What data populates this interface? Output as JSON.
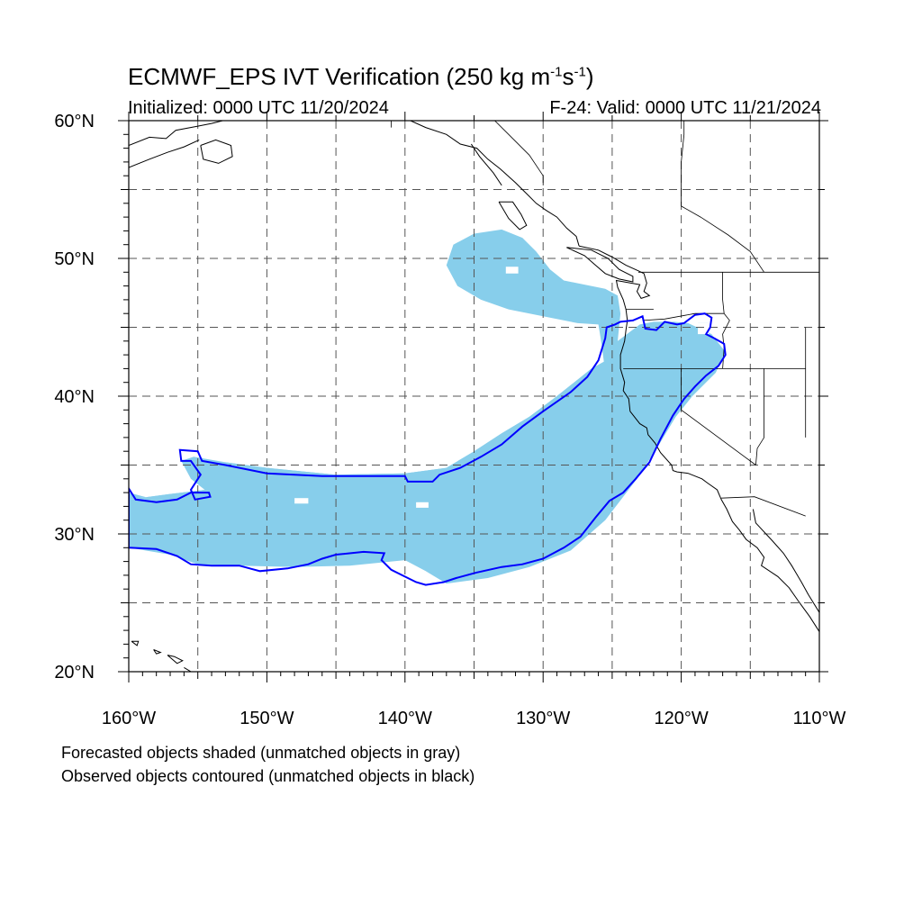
{
  "title": {
    "prefix": "ECMWF_EPS IVT Verification (250 kg m",
    "exp1": "-1",
    "mid": "s",
    "exp2": "-1",
    "suffix": ")"
  },
  "subtitle_left": "Initialized: 0000 UTC 11/20/2024",
  "subtitle_right": "F-24: Valid: 0000 UTC 11/21/2024",
  "footnotes": [
    "Forecasted objects shaded (unmatched objects in gray)",
    "Observed objects contoured (unmatched objects in black)"
  ],
  "map": {
    "extent": {
      "lon": [
        -160,
        -110
      ],
      "lat": [
        20,
        60
      ]
    },
    "lon_labels": [
      "160°W",
      "150°W",
      "140°W",
      "130°W",
      "120°W",
      "110°W"
    ],
    "lat_labels": [
      "20°N",
      "30°N",
      "40°N",
      "50°N",
      "60°N"
    ],
    "grid_lons": [
      -155,
      -150,
      -145,
      -140,
      -135,
      -130,
      -125,
      -120,
      -115
    ],
    "grid_lats": [
      25,
      30,
      35,
      40,
      45,
      50,
      55
    ],
    "colors": {
      "forecast_fill": "#87CEEB",
      "observed_contour": "#0000FF",
      "coastline": "#000000",
      "grid": "#555555"
    },
    "forecast_object": [
      [
        -160,
        33
      ],
      [
        -157,
        32.2
      ],
      [
        -153,
        32
      ],
      [
        -150,
        32.5
      ],
      [
        -146,
        33.2
      ],
      [
        -140,
        33.8
      ],
      [
        -135,
        34.5
      ],
      [
        -132,
        35.8
      ],
      [
        -129,
        37.8
      ],
      [
        -126,
        40
      ],
      [
        -124.8,
        42
      ],
      [
        -124.6,
        44
      ],
      [
        -124.4,
        46
      ],
      [
        -124.6,
        47.3
      ],
      [
        -125.5,
        47.8
      ],
      [
        -127,
        48.1
      ],
      [
        -128.5,
        48.4
      ],
      [
        -129.5,
        49.2
      ],
      [
        -130.5,
        50.5
      ],
      [
        -131.5,
        51.5
      ],
      [
        -133,
        52.1
      ],
      [
        -135,
        51.8
      ],
      [
        -136.5,
        51
      ],
      [
        -137,
        49.5
      ],
      [
        -136.2,
        48
      ],
      [
        -134.5,
        47
      ],
      [
        -132.5,
        46.3
      ],
      [
        -130,
        45.8
      ],
      [
        -127.5,
        45.3
      ],
      [
        -126,
        45.2
      ],
      [
        -125.8,
        44
      ],
      [
        -125.6,
        42.5
      ],
      [
        -126.5,
        42
      ],
      [
        -129,
        40
      ],
      [
        -131,
        38.5
      ],
      [
        -133,
        37.3
      ],
      [
        -135,
        36
      ],
      [
        -137,
        34.8
      ],
      [
        -140,
        34.4
      ],
      [
        -145,
        34.3
      ],
      [
        -150,
        34.8
      ],
      [
        -153,
        35.2
      ],
      [
        -155.3,
        35.6
      ],
      [
        -156.2,
        35.3
      ],
      [
        -155.5,
        34
      ],
      [
        -154.5,
        33.2
      ],
      [
        -157,
        32.9
      ],
      [
        -160,
        32.5
      ]
    ],
    "forecast_object_lower": [
      [
        -160,
        32.5
      ],
      [
        -160,
        29
      ],
      [
        -157,
        28.5
      ],
      [
        -155,
        27.8
      ],
      [
        -152,
        27.7
      ],
      [
        -148,
        27.6
      ],
      [
        -144,
        27.7
      ],
      [
        -140,
        28.1
      ],
      [
        -138.5,
        27.3
      ],
      [
        -137,
        26.4
      ],
      [
        -134,
        26.8
      ],
      [
        -131,
        27.6
      ],
      [
        -128,
        28.8
      ],
      [
        -125.5,
        31
      ],
      [
        -123.2,
        34
      ],
      [
        -121.6,
        36.5
      ],
      [
        -120.4,
        38.5
      ],
      [
        -119.2,
        40
      ],
      [
        -117.5,
        41.7
      ],
      [
        -116.8,
        43.2
      ],
      [
        -117.8,
        44.5
      ],
      [
        -119.5,
        45.3
      ],
      [
        -120.5,
        45.4
      ],
      [
        -122,
        45.4
      ],
      [
        -123,
        45.2
      ],
      [
        -124.6,
        44
      ],
      [
        -125.6,
        42.5
      ],
      [
        -126.5,
        42
      ],
      [
        -129,
        40
      ],
      [
        -131,
        38.5
      ],
      [
        -133,
        37.3
      ],
      [
        -135,
        36
      ],
      [
        -137,
        34.8
      ],
      [
        -140,
        34.4
      ],
      [
        -145,
        34.3
      ],
      [
        -150,
        34.8
      ],
      [
        -153,
        35.2
      ],
      [
        -154.5,
        33.2
      ],
      [
        -157,
        32.9
      ],
      [
        -160,
        32.5
      ]
    ],
    "forecast_holes": [
      [
        [
          -132.7,
          49.4
        ],
        [
          -131.8,
          49.4
        ],
        [
          -131.8,
          48.9
        ],
        [
          -132.7,
          48.9
        ]
      ],
      [
        [
          -139.2,
          32.3
        ],
        [
          -138.3,
          32.3
        ],
        [
          -138.3,
          31.9
        ],
        [
          -139.2,
          31.9
        ]
      ],
      [
        [
          -148,
          32.6
        ],
        [
          -147,
          32.6
        ],
        [
          -147,
          32.2
        ],
        [
          -148,
          32.2
        ]
      ],
      [
        [
          -118.8,
          45.3
        ],
        [
          -118,
          45.3
        ],
        [
          -118,
          44.5
        ],
        [
          -118.8,
          44.5
        ]
      ]
    ],
    "observed_object": [
      [
        -160,
        33.3
      ],
      [
        -159.5,
        32.5
      ],
      [
        -158,
        32.3
      ],
      [
        -156.5,
        32.5
      ],
      [
        -155.5,
        33
      ],
      [
        -154.2,
        33
      ],
      [
        -154.1,
        32.7
      ],
      [
        -155.2,
        32.5
      ],
      [
        -155.5,
        33.2
      ],
      [
        -154.8,
        34.3
      ],
      [
        -155.5,
        35.3
      ],
      [
        -156.2,
        35.3
      ],
      [
        -156.3,
        36.1
      ],
      [
        -155,
        36
      ],
      [
        -154.7,
        35.3
      ],
      [
        -153,
        35
      ],
      [
        -150,
        34.4
      ],
      [
        -146,
        34.2
      ],
      [
        -140,
        34.2
      ],
      [
        -139.8,
        33.8
      ],
      [
        -138,
        33.8
      ],
      [
        -137.5,
        34.3
      ],
      [
        -136,
        34.8
      ],
      [
        -134.5,
        35.6
      ],
      [
        -133,
        36.5
      ],
      [
        -131.5,
        37.8
      ],
      [
        -130,
        38.9
      ],
      [
        -128,
        40.3
      ],
      [
        -126.8,
        41.4
      ],
      [
        -126,
        42.6
      ],
      [
        -125.5,
        44.2
      ],
      [
        -125.4,
        45
      ],
      [
        -124.8,
        45.2
      ],
      [
        -124.4,
        45.4
      ],
      [
        -123.5,
        45.5
      ],
      [
        -122.8,
        45.8
      ],
      [
        -122.6,
        44.9
      ],
      [
        -121.8,
        44.8
      ],
      [
        -121.2,
        45.4
      ],
      [
        -120.3,
        45.2
      ],
      [
        -119.8,
        45.3
      ],
      [
        -119,
        45.9
      ],
      [
        -118.3,
        46
      ],
      [
        -117.8,
        45.7
      ],
      [
        -117.9,
        45
      ],
      [
        -118.2,
        44.5
      ],
      [
        -117.6,
        44.2
      ],
      [
        -116.9,
        43.8
      ],
      [
        -116.8,
        43
      ],
      [
        -117.3,
        42.2
      ],
      [
        -118.2,
        41.5
      ],
      [
        -119,
        40.7
      ],
      [
        -119.8,
        39.8
      ],
      [
        -120.6,
        38.6
      ],
      [
        -121.5,
        36.9
      ],
      [
        -122.3,
        35.2
      ],
      [
        -123.3,
        34
      ],
      [
        -124.2,
        33
      ],
      [
        -125.2,
        32.4
      ],
      [
        -126.2,
        31.2
      ],
      [
        -127.3,
        29.8
      ],
      [
        -128.5,
        29
      ],
      [
        -130,
        28.2
      ],
      [
        -131.5,
        27.8
      ],
      [
        -133,
        27.6
      ],
      [
        -134.8,
        27.2
      ],
      [
        -136.3,
        26.8
      ],
      [
        -137.2,
        26.5
      ],
      [
        -138.5,
        26.3
      ],
      [
        -139.2,
        26.5
      ],
      [
        -140.2,
        27
      ],
      [
        -141,
        27.4
      ],
      [
        -141.7,
        28.1
      ],
      [
        -141.5,
        28.6
      ],
      [
        -143,
        28.7
      ],
      [
        -145,
        28.5
      ],
      [
        -146,
        28.2
      ],
      [
        -147,
        27.8
      ],
      [
        -148.5,
        27.5
      ],
      [
        -150.5,
        27.3
      ],
      [
        -152,
        27.7
      ],
      [
        -154,
        27.7
      ],
      [
        -155.5,
        27.8
      ],
      [
        -156.5,
        28.4
      ],
      [
        -158,
        28.9
      ],
      [
        -160,
        29
      ]
    ],
    "coastlines": [
      [
        [
          -160,
          58.2
        ],
        [
          -158.5,
          58.8
        ],
        [
          -157.3,
          58.7
        ],
        [
          -156.6,
          59.3
        ],
        [
          -155,
          59.6
        ],
        [
          -154,
          59.8
        ],
        [
          -153.2,
          60
        ]
      ],
      [
        [
          -160,
          56.6
        ],
        [
          -158.5,
          57.2
        ],
        [
          -157.2,
          57.7
        ],
        [
          -156,
          58.1
        ],
        [
          -154.9,
          58.6
        ]
      ],
      [
        [
          -154.8,
          58.2
        ],
        [
          -153.7,
          58.6
        ],
        [
          -152.6,
          58.2
        ],
        [
          -152.5,
          57.4
        ],
        [
          -153.5,
          56.9
        ],
        [
          -154.6,
          57.2
        ],
        [
          -154.8,
          58.2
        ]
      ],
      [
        [
          -139.6,
          60
        ],
        [
          -138.5,
          59.5
        ],
        [
          -137,
          59
        ],
        [
          -136,
          58.3
        ],
        [
          -134.8,
          58
        ],
        [
          -134,
          57.2
        ],
        [
          -133.1,
          56.5
        ],
        [
          -132,
          55.5
        ],
        [
          -131,
          54.5
        ],
        [
          -130.5,
          54
        ],
        [
          -129.8,
          53.5
        ],
        [
          -129,
          53
        ],
        [
          -128.3,
          52.2
        ],
        [
          -127.6,
          51.6
        ],
        [
          -127.4,
          50.9
        ]
      ],
      [
        [
          -135.2,
          58.3
        ],
        [
          -134.6,
          57.4
        ],
        [
          -133.6,
          56.2
        ],
        [
          -133,
          55.3
        ]
      ],
      [
        [
          -133.2,
          54.1
        ],
        [
          -132.2,
          54.1
        ],
        [
          -131.6,
          53.2
        ],
        [
          -131.2,
          52.4
        ],
        [
          -131.7,
          52.1
        ],
        [
          -132.5,
          52.9
        ],
        [
          -133.2,
          54.1
        ]
      ],
      [
        [
          -128.3,
          50.8
        ],
        [
          -127,
          50.2
        ],
        [
          -126.2,
          49.5
        ],
        [
          -125.5,
          48.9
        ],
        [
          -124.5,
          48.5
        ],
        [
          -123.5,
          48.3
        ],
        [
          -123.5,
          48.7
        ],
        [
          -124.5,
          49.2
        ],
        [
          -125.3,
          50
        ],
        [
          -126.5,
          50.6
        ],
        [
          -128.3,
          50.8
        ]
      ],
      [
        [
          -127.4,
          50.9
        ],
        [
          -126,
          50.6
        ],
        [
          -125,
          50.1
        ],
        [
          -124,
          49.5
        ],
        [
          -123.1,
          49.1
        ],
        [
          -122.7,
          48.9
        ],
        [
          -122.5,
          48.2
        ],
        [
          -122.7,
          47.6
        ],
        [
          -122.3,
          47.3
        ],
        [
          -122.9,
          47.1
        ],
        [
          -123.2,
          47.6
        ],
        [
          -123,
          48.1
        ],
        [
          -124.7,
          48.4
        ],
        [
          -124.6,
          47.9
        ],
        [
          -124.2,
          47
        ],
        [
          -124,
          46.3
        ],
        [
          -123.9,
          45.5
        ],
        [
          -124,
          44.8
        ],
        [
          -124.1,
          44
        ],
        [
          -124.4,
          43
        ],
        [
          -124.4,
          42
        ],
        [
          -124.1,
          41
        ],
        [
          -124.2,
          40.4
        ],
        [
          -123.8,
          39.8
        ],
        [
          -123.7,
          38.9
        ],
        [
          -123,
          38
        ],
        [
          -122.5,
          37.7
        ],
        [
          -122.4,
          37.2
        ],
        [
          -121.9,
          36.6
        ],
        [
          -121.5,
          35.9
        ],
        [
          -120.7,
          35
        ],
        [
          -120.6,
          34.6
        ],
        [
          -120.3,
          34.5
        ],
        [
          -119.5,
          34.4
        ],
        [
          -118.5,
          34
        ],
        [
          -118.1,
          33.7
        ],
        [
          -117.4,
          33.2
        ],
        [
          -117.1,
          32.5
        ],
        [
          -116.7,
          31.8
        ],
        [
          -116.3,
          30.9
        ],
        [
          -115.8,
          30.3
        ],
        [
          -115.3,
          29.6
        ],
        [
          -114.5,
          29
        ],
        [
          -114,
          28.3
        ],
        [
          -114.2,
          27.7
        ],
        [
          -113,
          26.9
        ],
        [
          -112.2,
          26.1
        ],
        [
          -111.5,
          25.1
        ],
        [
          -110.7,
          24
        ],
        [
          -110,
          22.9
        ]
      ],
      [
        [
          -114.8,
          31.8
        ],
        [
          -114.6,
          30.8
        ],
        [
          -113.4,
          29.5
        ],
        [
          -112.6,
          28.6
        ],
        [
          -112,
          27.7
        ],
        [
          -111.3,
          26.5
        ],
        [
          -110.8,
          25.6
        ],
        [
          -110,
          24.3
        ]
      ],
      [
        [
          -159.8,
          22.2
        ],
        [
          -159.3,
          22.2
        ],
        [
          -159.4,
          21.9
        ],
        [
          -159.8,
          22.2
        ]
      ],
      [
        [
          -158.2,
          21.6
        ],
        [
          -157.7,
          21.4
        ],
        [
          -158,
          21.3
        ],
        [
          -158.2,
          21.6
        ]
      ],
      [
        [
          -157.2,
          21.2
        ],
        [
          -156.7,
          21.1
        ],
        [
          -156.1,
          20.8
        ],
        [
          -156.5,
          20.6
        ],
        [
          -157.2,
          21.2
        ]
      ],
      [
        [
          -156,
          20.3
        ],
        [
          -155,
          19.7
        ]
      ]
    ],
    "borders": [
      [
        [
          -141,
          60
        ],
        [
          -141,
          59.5
        ]
      ],
      [
        [
          -133.5,
          60
        ],
        [
          -132.5,
          59
        ],
        [
          -131,
          57.5
        ],
        [
          -130,
          56
        ],
        [
          -130,
          55.3
        ]
      ],
      [
        [
          -123.1,
          49
        ],
        [
          -110,
          49
        ]
      ],
      [
        [
          -124.2,
          42
        ],
        [
          -120,
          42
        ],
        [
          -117,
          42
        ],
        [
          -114,
          42
        ],
        [
          -111,
          42
        ]
      ],
      [
        [
          -120,
          42
        ],
        [
          -120,
          39
        ],
        [
          -114.6,
          35
        ]
      ],
      [
        [
          -117.1,
          32.6
        ],
        [
          -114.7,
          32.7
        ],
        [
          -111,
          31.3
        ]
      ],
      [
        [
          -116.9,
          46
        ],
        [
          -117,
          47
        ],
        [
          -117,
          49
        ]
      ],
      [
        [
          -116.9,
          46
        ],
        [
          -116.5,
          45.5
        ],
        [
          -117,
          44.5
        ],
        [
          -116.9,
          43.5
        ],
        [
          -117,
          42
        ]
      ],
      [
        [
          -114,
          42
        ],
        [
          -114,
          37
        ],
        [
          -114.5,
          36.2
        ],
        [
          -114.6,
          35
        ]
      ],
      [
        [
          -111,
          45
        ],
        [
          -111,
          41
        ],
        [
          -111,
          37
        ]
      ],
      [
        [
          -119.8,
          60
        ],
        [
          -119.8,
          59
        ],
        [
          -120,
          57
        ],
        [
          -120,
          53.8
        ],
        [
          -118.6,
          53
        ],
        [
          -116.6,
          51.7
        ],
        [
          -115,
          50.5
        ],
        [
          -114,
          49
        ]
      ],
      [
        [
          -122.8,
          45.5
        ],
        [
          -121.2,
          45.6
        ],
        [
          -119,
          46
        ],
        [
          -116.9,
          46
        ]
      ],
      [
        [
          -124,
          46.3
        ],
        [
          -122,
          46.3
        ]
      ]
    ]
  }
}
